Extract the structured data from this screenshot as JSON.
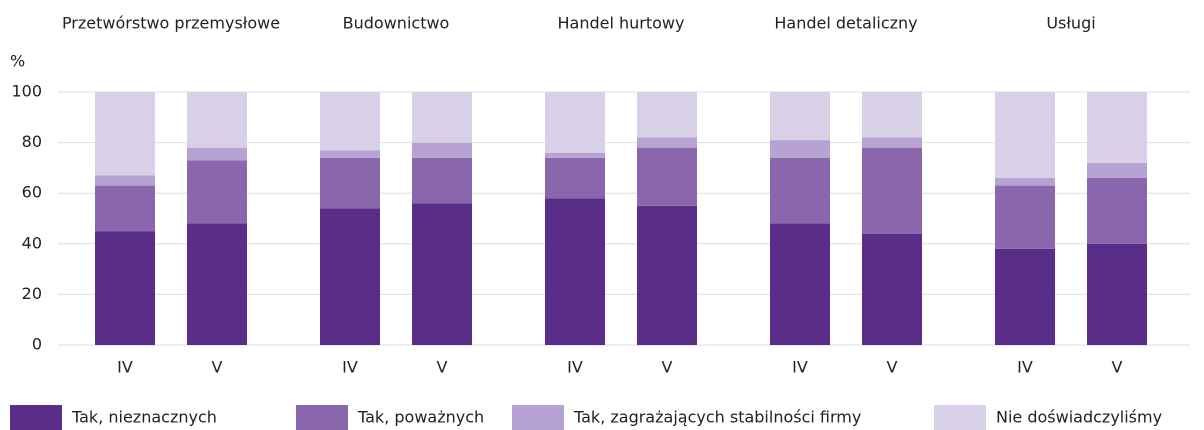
{
  "chart_data": {
    "type": "stacked_bar",
    "y_label": "%",
    "groups": [
      "Przetwórstwo przemysłowe",
      "Budownictwo",
      "Handel hurtowy",
      "Handel detaliczny",
      "Usługi"
    ],
    "categories": [
      "IV",
      "V",
      "IV",
      "V",
      "IV",
      "V",
      "IV",
      "V",
      "IV",
      "V"
    ],
    "series": [
      {
        "name": "Tak, nieznacznych",
        "color": "#5a2d88",
        "values": [
          45,
          48,
          54,
          56,
          58,
          55,
          48,
          44,
          38,
          40
        ]
      },
      {
        "name": "Tak, poważnych",
        "color": "#8a67ac",
        "values": [
          18,
          25,
          20,
          18,
          16,
          23,
          26,
          34,
          25,
          26
        ]
      },
      {
        "name": "Tak, zagrażających stabilności firmy",
        "color": "#b7a3d3",
        "values": [
          4,
          5,
          3,
          6,
          2,
          4,
          7,
          4,
          3,
          6
        ]
      },
      {
        "name": "Nie doświadczyliśmy",
        "color": "#d8d0e7",
        "values": [
          33,
          22,
          23,
          20,
          24,
          18,
          19,
          18,
          34,
          28
        ]
      }
    ],
    "ylim": [
      0,
      100
    ],
    "yticks": [
      0,
      20,
      40,
      60,
      80,
      100
    ],
    "grid": true
  }
}
